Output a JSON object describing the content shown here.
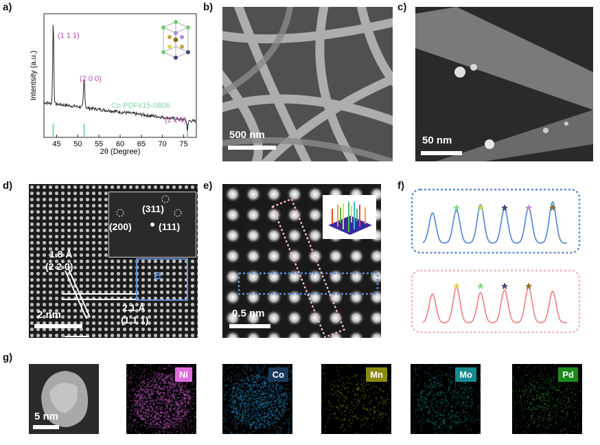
{
  "panels": {
    "a": "a)",
    "b": "b)",
    "c": "c)",
    "d": "d)",
    "e": "e)",
    "f": "f)",
    "g": "g)"
  },
  "chart_data": {
    "type": "line",
    "xlabel": "2θ (Degree)",
    "ylabel": "Intentsity (a.u.)",
    "xlim": [
      42,
      78
    ],
    "x_ticks": [
      "45",
      "50",
      "55",
      "60",
      "65",
      "70",
      "75"
    ],
    "peaks": [
      {
        "label": "(1 1 1)",
        "x": 44.2,
        "intensity": 0.95
      },
      {
        "label": "(2 0 0)",
        "x": 51.5,
        "intensity": 0.45
      },
      {
        "label": "(2 2 0)",
        "x": 75.9,
        "intensity": 0.12
      }
    ],
    "reference": {
      "name": "Co PDF#15-0806",
      "lines": [
        44.2,
        51.5,
        75.9
      ]
    },
    "colors": {
      "curve": "#222222",
      "hkl": "#b44ab4",
      "reference": "#7fd9a6"
    }
  },
  "sem_b": {
    "scale": "500 nm"
  },
  "stem_c": {
    "scale": "50 nm"
  },
  "hrtem_d": {
    "scale": "2 nm",
    "fft_labels": [
      "(311)",
      "(200)",
      "(111)"
    ],
    "d1": "1.8 Å",
    "d1_hkl": "(2 2 0)",
    "d2": "2.1 Å",
    "d2_hkl": "(1 1 1)",
    "box_letter": "e",
    "box_color": "#5b8fd6"
  },
  "haadf_e": {
    "scale": "0.5 nm"
  },
  "profiles_f": {
    "top_color": "#5b8fd6",
    "bottom_color": "#f08a8a",
    "star_colors_top": [
      "#7fd97f",
      "#d6d64a",
      "#3a3f5a",
      "#b48ad6",
      "#8a6a1a"
    ],
    "star_colors_bottom": [
      "#d6d64a",
      "#7fd97f",
      "#3a3f5a",
      "#8a6a1a"
    ]
  },
  "eds_g": {
    "scale": "5 nm",
    "elements": [
      {
        "name": "Ni",
        "color": "#e06be0"
      },
      {
        "name": "Co",
        "color": "#2a9ad6"
      },
      {
        "name": "Mn",
        "color": "#b8b800"
      },
      {
        "name": "Mo",
        "color": "#19b0b8"
      },
      {
        "name": "Pd",
        "color": "#3ab83a"
      }
    ]
  }
}
